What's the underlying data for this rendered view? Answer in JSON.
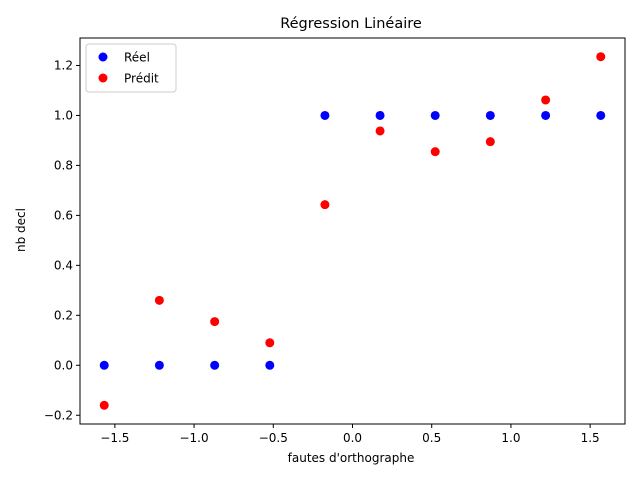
{
  "chart_data": {
    "type": "scatter",
    "title": "Régression Linéaire",
    "xlabel": "fautes d'orthographe",
    "ylabel": "nb decl",
    "xlim": [
      -1.72,
      1.72
    ],
    "ylim": [
      -0.235,
      1.31
    ],
    "xticks": [
      -1.5,
      -1.0,
      -0.5,
      0.0,
      0.5,
      1.0,
      1.5
    ],
    "xtick_labels": [
      "−1.5",
      "−1.0",
      "−0.5",
      "0.0",
      "0.5",
      "1.0",
      "1.5"
    ],
    "yticks": [
      -0.2,
      0.0,
      0.2,
      0.4,
      0.6,
      0.8,
      1.0,
      1.2
    ],
    "ytick_labels": [
      "−0.2",
      "0.0",
      "0.2",
      "0.4",
      "0.6",
      "0.8",
      "1.0",
      "1.2"
    ],
    "grid": false,
    "legend_position": "top-left",
    "series": [
      {
        "name": "Réel",
        "color": "#0000ff",
        "x": [
          -1.567,
          -1.219,
          -0.87,
          -0.522,
          -0.174,
          0.174,
          0.522,
          0.87,
          1.219,
          1.567
        ],
        "y": [
          0,
          0,
          0,
          0,
          1,
          1,
          1,
          1,
          1,
          1
        ]
      },
      {
        "name": "Prédit",
        "color": "#ff0000",
        "x": [
          -1.567,
          -1.219,
          -0.87,
          -0.522,
          -0.174,
          0.174,
          0.522,
          0.87,
          1.219,
          1.567
        ],
        "y": [
          -0.16,
          0.26,
          0.175,
          0.09,
          0.643,
          0.938,
          0.855,
          0.895,
          1.062,
          1.235
        ]
      }
    ]
  }
}
